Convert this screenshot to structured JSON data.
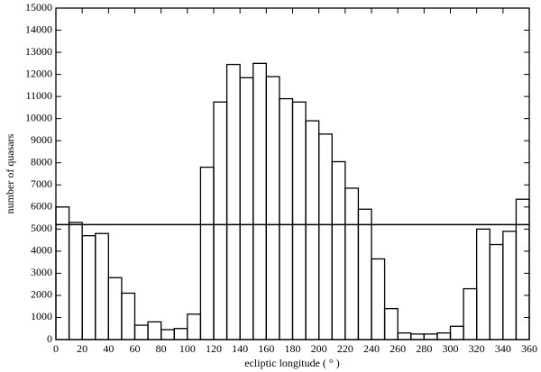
{
  "chart_data": {
    "type": "histogram",
    "xlabel": "ecliptic longitude ( ° )",
    "ylabel": "number of quasars",
    "bins": [
      0,
      10,
      20,
      30,
      40,
      50,
      60,
      70,
      80,
      90,
      100,
      110,
      120,
      130,
      140,
      150,
      160,
      170,
      180,
      190,
      200,
      210,
      220,
      230,
      240,
      250,
      260,
      270,
      280,
      290,
      300,
      310,
      320,
      330,
      340,
      350,
      360
    ],
    "values": [
      6000,
      5300,
      4700,
      4800,
      2800,
      2100,
      650,
      800,
      450,
      500,
      1150,
      7800,
      10750,
      12450,
      11850,
      12500,
      11900,
      10900,
      10750,
      9900,
      9300,
      8050,
      6850,
      5900,
      3650,
      1400,
      300,
      250,
      250,
      300,
      600,
      2300,
      5000,
      4300,
      4900,
      6350
    ],
    "reference_line": 5200,
    "color": "#000000",
    "xlim": [
      0,
      360
    ],
    "xticks": [
      0,
      20,
      40,
      60,
      80,
      100,
      120,
      140,
      160,
      180,
      200,
      220,
      240,
      260,
      280,
      300,
      320,
      340,
      360
    ],
    "ylim": [
      0,
      15000
    ],
    "yticks": [
      0,
      1000,
      2000,
      3000,
      4000,
      5000,
      6000,
      7000,
      8000,
      9000,
      10000,
      11000,
      12000,
      13000,
      14000,
      15000
    ],
    "grid": false
  }
}
